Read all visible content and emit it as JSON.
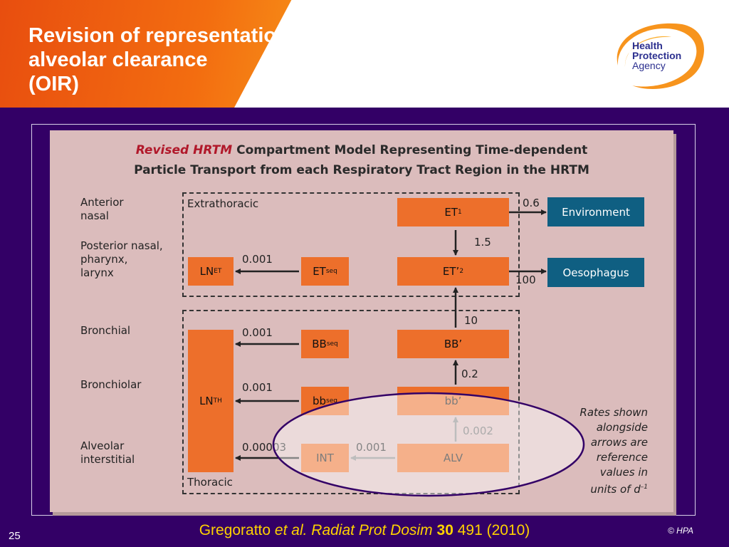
{
  "slide": {
    "title_lines": [
      "Revision of representation of",
      "alveolar clearance",
      "(OIR)"
    ],
    "page_number": "25",
    "copyright": "© HPA"
  },
  "logo": {
    "line1": "Health",
    "line2": "Protection",
    "line3": "Agency"
  },
  "figure": {
    "title_red": "Revised HRTM",
    "title_rest": "Compartment Model Representing Time-dependent",
    "title_line2": "Particle Transport from each Respiratory Tract Region in the HRTM",
    "region_labels": {
      "anterior_nasal": [
        "Anterior",
        "nasal"
      ],
      "posterior_nasal": [
        "Posterior nasal,",
        "pharynx,",
        "larynx"
      ],
      "bronchial": "Bronchial",
      "bronchiolar": "Bronchiolar",
      "alveolar_interstitial": [
        "Alveolar",
        "interstitial"
      ]
    },
    "extrathoracic_label": "Extrathoracic",
    "thoracic_label": "Thoracic",
    "compartments": {
      "et1": {
        "main": "ET",
        "sub": "1"
      },
      "et2": {
        "main": "ET’",
        "sub": "2"
      },
      "etseq": {
        "main": "ET",
        "sub": "seq"
      },
      "lnet": {
        "main": "LN",
        "sub": "ET"
      },
      "environment": "Environment",
      "oesophagus": "Oesophagus",
      "bb_prime": "BB’",
      "bbseq": {
        "main": "BB",
        "sub": "seq"
      },
      "bb_small_prime": "bb’",
      "bbseq_small": {
        "main": "bb",
        "sub": "seq"
      },
      "lnth": {
        "main": "LN",
        "sub": "TH"
      },
      "int": "INT",
      "alv": "ALV"
    },
    "rates": {
      "et1_env": "0.6",
      "et1_et2": "1.5",
      "et2_oes": "100",
      "etseq_lnet": "0.001",
      "bb_et2": "10",
      "bbseq_lnth": "0.001",
      "bbsmall_bb": "0.2",
      "bbsmallseq_lnth": "0.001",
      "alv_bbsmall": "0.002",
      "int_lnth": "0.00003",
      "alv_int": "0.001"
    },
    "note": {
      "lines": [
        "Rates shown",
        "alongside",
        "arrows are",
        "reference",
        "values in",
        "units of d"
      ],
      "superscript": "–1"
    }
  },
  "citation": {
    "author": "Gregoratto ",
    "etal": "et al. Radiat Prot Dosim ",
    "volume": "30",
    "rest": " 491 (2010)"
  },
  "colors": {
    "background": "#330066",
    "compartment": "#ed6f2b",
    "compartment_light": "#f6a576",
    "destination": "#0f5f82",
    "highlight_ellipse": "#330066",
    "citation": "#ffd200"
  }
}
